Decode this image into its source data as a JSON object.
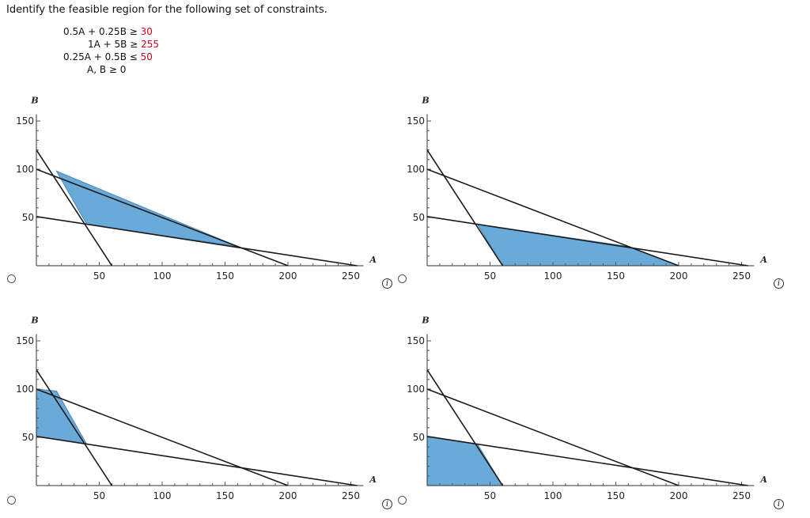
{
  "question": "Identify the feasible region for the following set of constraints.",
  "constraints": [
    {
      "lhs": "0.5A + 0.25B",
      "rel": "≥",
      "rhs": "30"
    },
    {
      "lhs": "1A + 5B",
      "rel": "≥",
      "rhs": "255"
    },
    {
      "lhs": "0.25A + 0.5B",
      "rel": "≤",
      "rhs": "50"
    },
    {
      "lhs": "A, B",
      "rel": "≥",
      "rhs": "0"
    }
  ],
  "info_symbol": "i",
  "graphs": {
    "x_label": "A",
    "y_label": "B",
    "x_ticks": [
      "50",
      "100",
      "150",
      "200",
      "250"
    ],
    "y_ticks": [
      "50",
      "100",
      "150"
    ],
    "fill_color": "#6aaad8",
    "line_color": "#1a1a1a"
  },
  "options": [
    {
      "id": "opt1",
      "region": [
        [
          16,
          98
        ],
        [
          40,
          43
        ],
        [
          160,
          20
        ]
      ]
    },
    {
      "id": "opt2",
      "region": [
        [
          40,
          43
        ],
        [
          160,
          20
        ],
        [
          200,
          0
        ],
        [
          60,
          0
        ]
      ]
    },
    {
      "id": "opt3",
      "region": [
        [
          0,
          100
        ],
        [
          16,
          98
        ],
        [
          40,
          43
        ],
        [
          0,
          51
        ]
      ]
    },
    {
      "id": "opt4",
      "region": [
        [
          0,
          51
        ],
        [
          40,
          43
        ],
        [
          60,
          0
        ],
        [
          0,
          0
        ]
      ]
    }
  ],
  "chart_data": [
    {
      "type": "area",
      "title": "",
      "xlabel": "A",
      "ylabel": "B",
      "xlim": [
        0,
        260
      ],
      "ylim": [
        0,
        160
      ],
      "lines": [
        {
          "name": "0.5A + 0.25B = 30",
          "x": [
            0,
            60
          ],
          "y": [
            120,
            0
          ]
        },
        {
          "name": "1A + 5B = 255",
          "x": [
            0,
            255
          ],
          "y": [
            51,
            0
          ]
        },
        {
          "name": "0.25A + 0.5B = 50",
          "x": [
            0,
            200
          ],
          "y": [
            100,
            0
          ]
        }
      ],
      "shaded_region": [
        [
          16,
          98
        ],
        [
          40,
          43
        ],
        [
          160,
          20
        ]
      ]
    },
    {
      "type": "area",
      "title": "",
      "xlabel": "A",
      "ylabel": "B",
      "xlim": [
        0,
        260
      ],
      "ylim": [
        0,
        160
      ],
      "lines": [
        {
          "name": "0.5A + 0.25B = 30",
          "x": [
            0,
            60
          ],
          "y": [
            120,
            0
          ]
        },
        {
          "name": "1A + 5B = 255",
          "x": [
            0,
            255
          ],
          "y": [
            51,
            0
          ]
        },
        {
          "name": "0.25A + 0.5B = 50",
          "x": [
            0,
            200
          ],
          "y": [
            100,
            0
          ]
        }
      ],
      "shaded_region": [
        [
          40,
          43
        ],
        [
          160,
          20
        ],
        [
          200,
          0
        ],
        [
          60,
          0
        ]
      ]
    },
    {
      "type": "area",
      "title": "",
      "xlabel": "A",
      "ylabel": "B",
      "xlim": [
        0,
        260
      ],
      "ylim": [
        0,
        160
      ],
      "lines": [
        {
          "name": "0.5A + 0.25B = 30",
          "x": [
            0,
            60
          ],
          "y": [
            120,
            0
          ]
        },
        {
          "name": "1A + 5B = 255",
          "x": [
            0,
            255
          ],
          "y": [
            51,
            0
          ]
        },
        {
          "name": "0.25A + 0.5B = 50",
          "x": [
            0,
            200
          ],
          "y": [
            100,
            0
          ]
        }
      ],
      "shaded_region": [
        [
          0,
          100
        ],
        [
          16,
          98
        ],
        [
          40,
          43
        ],
        [
          0,
          51
        ]
      ]
    },
    {
      "type": "area",
      "title": "",
      "xlabel": "A",
      "ylabel": "B",
      "xlim": [
        0,
        260
      ],
      "ylim": [
        0,
        160
      ],
      "lines": [
        {
          "name": "0.5A + 0.25B = 30",
          "x": [
            0,
            60
          ],
          "y": [
            120,
            0
          ]
        },
        {
          "name": "1A + 5B = 255",
          "x": [
            0,
            255
          ],
          "y": [
            51,
            0
          ]
        },
        {
          "name": "0.25A + 0.5B = 50",
          "x": [
            0,
            200
          ],
          "y": [
            100,
            0
          ]
        }
      ],
      "shaded_region": [
        [
          0,
          51
        ],
        [
          40,
          43
        ],
        [
          60,
          0
        ],
        [
          0,
          0
        ]
      ]
    }
  ]
}
